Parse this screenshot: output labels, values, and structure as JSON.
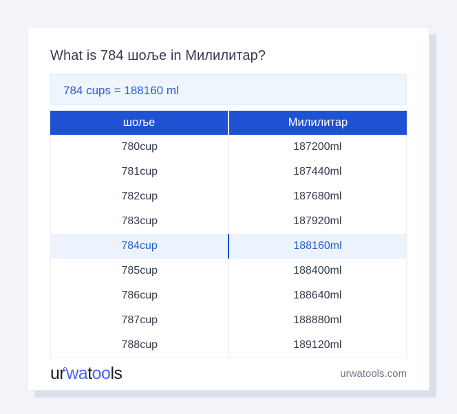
{
  "page": {
    "title": "What is 784 шоље in Милилитар?",
    "conversion_result": "784 cups = 188160 ml"
  },
  "table": {
    "headers": [
      "шоље",
      "Милилитар"
    ],
    "highlighted_row": "784cup",
    "rows": [
      {
        "cup": "780cup",
        "ml": "187200ml",
        "highlight": false
      },
      {
        "cup": "781cup",
        "ml": "187440ml",
        "highlight": false
      },
      {
        "cup": "782cup",
        "ml": "187680ml",
        "highlight": false
      },
      {
        "cup": "783cup",
        "ml": "187920ml",
        "highlight": false
      },
      {
        "cup": "784cup",
        "ml": "188160ml",
        "highlight": true
      },
      {
        "cup": "785cup",
        "ml": "188400ml",
        "highlight": false
      },
      {
        "cup": "786cup",
        "ml": "188640ml",
        "highlight": false
      },
      {
        "cup": "787cup",
        "ml": "188880ml",
        "highlight": false
      },
      {
        "cup": "788cup",
        "ml": "189120ml",
        "highlight": false
      }
    ]
  },
  "footer": {
    "logo": {
      "p1": "ur",
      "p2": "wa",
      "p3": "t",
      "p4": "oo",
      "p5": "ls"
    },
    "site_url": "urwatools.com"
  },
  "colors": {
    "page_bg": "#f2f4f9",
    "header_bg": "#1f51d3",
    "result_box_bg": "#eef5fd",
    "result_text": "#2b5cd4",
    "highlight_bg": "#ecf3fd",
    "highlight_text": "#2461cf",
    "highlight_divider": "#1b4fc8",
    "logo_blue": "#4e61f6"
  }
}
